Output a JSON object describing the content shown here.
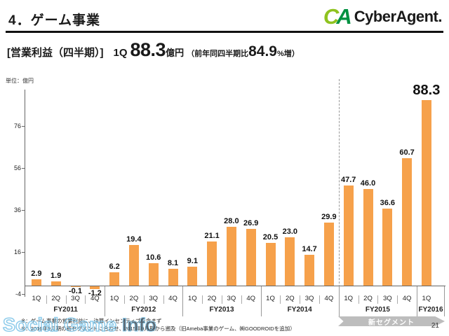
{
  "header": {
    "title": "4．ゲーム事業",
    "logo": {
      "mark_c": "C",
      "mark_a": "A",
      "text": "CyberAgent.",
      "color_c": "#8FC31F",
      "color_a": "#009140"
    }
  },
  "subtitle": {
    "label": "[営業利益（四半期）]",
    "quarter": "1Q",
    "value": "88.3",
    "unit": "億円",
    "comparison_prefix": "（前年同四半期比 ",
    "comparison_value": "84.9",
    "comparison_suffix": "%増）"
  },
  "chart_data": {
    "type": "bar",
    "title": "ゲーム事業 営業利益（四半期）",
    "unit_label": "単位：億円",
    "ylabel": "億円",
    "ylim": [
      -4,
      92
    ],
    "yticks": [
      76,
      56,
      36,
      16,
      -4
    ],
    "grid": false,
    "bar_color": "#F6A14B",
    "categories": [
      "FY2011 1Q",
      "FY2011 2Q",
      "FY2011 3Q",
      "FY2011 4Q",
      "FY2012 1Q",
      "FY2012 2Q",
      "FY2012 3Q",
      "FY2012 4Q",
      "FY2013 1Q",
      "FY2013 2Q",
      "FY2013 3Q",
      "FY2013 4Q",
      "FY2014 1Q",
      "FY2014 2Q",
      "FY2014 3Q",
      "FY2014 4Q",
      "FY2015 1Q",
      "FY2015 2Q",
      "FY2015 3Q",
      "FY2015 4Q",
      "FY2016 1Q"
    ],
    "values": [
      2.9,
      1.9,
      -0.1,
      -1.2,
      6.2,
      19.4,
      10.6,
      8.1,
      9.1,
      21.1,
      28.0,
      26.9,
      20.5,
      23.0,
      14.7,
      29.9,
      47.7,
      46.0,
      36.6,
      60.7,
      88.3
    ],
    "groups": [
      {
        "label": "FY2011",
        "quarters": [
          "1Q",
          "2Q",
          "3Q",
          "4Q"
        ],
        "values": [
          2.9,
          1.9,
          -0.1,
          -1.2
        ],
        "labels": [
          "2.9",
          "1.9",
          "-0.1",
          "-1.2"
        ]
      },
      {
        "label": "FY2012",
        "quarters": [
          "1Q",
          "2Q",
          "3Q",
          "4Q"
        ],
        "values": [
          6.2,
          19.4,
          10.6,
          8.1
        ],
        "labels": [
          "6.2",
          "19.4",
          "10.6",
          "8.1"
        ]
      },
      {
        "label": "FY2013",
        "quarters": [
          "1Q",
          "2Q",
          "3Q",
          "4Q"
        ],
        "values": [
          9.1,
          21.1,
          28.0,
          26.9
        ],
        "labels": [
          "9.1",
          "21.1",
          "28.0",
          "26.9"
        ]
      },
      {
        "label": "FY2014",
        "quarters": [
          "1Q",
          "2Q",
          "3Q",
          "4Q"
        ],
        "values": [
          20.5,
          23.0,
          14.7,
          29.9
        ],
        "labels": [
          "20.5",
          "23.0",
          "14.7",
          "29.9"
        ]
      },
      {
        "label": "FY2015",
        "quarters": [
          "1Q",
          "2Q",
          "3Q",
          "4Q"
        ],
        "values": [
          47.7,
          46.0,
          36.6,
          60.7
        ],
        "labels": [
          "47.7",
          "46.0",
          "36.6",
          "60.7"
        ]
      },
      {
        "label": "FY2016",
        "quarters": [
          "1Q"
        ],
        "values": [
          88.3
        ],
        "labels": [
          "88.3"
        ]
      }
    ],
    "new_segment_divider_after_group_index": 3,
    "highlight_last_label": true,
    "legend_position": "none"
  },
  "annotations": {
    "new_segment_banner": "新セグメント",
    "footnote1": "※：ゲーム事業の営業利益に、決算インセンティブを含まず",
    "footnote2": "※：2016年9月期の新セグメントに合わせ、2015年9月期から遡及（旧Ameba事業のゲーム、㈱GOODROIDを追加）",
    "page_number": "21"
  },
  "watermark": {
    "left": "Social Game",
    "right": "Info"
  }
}
